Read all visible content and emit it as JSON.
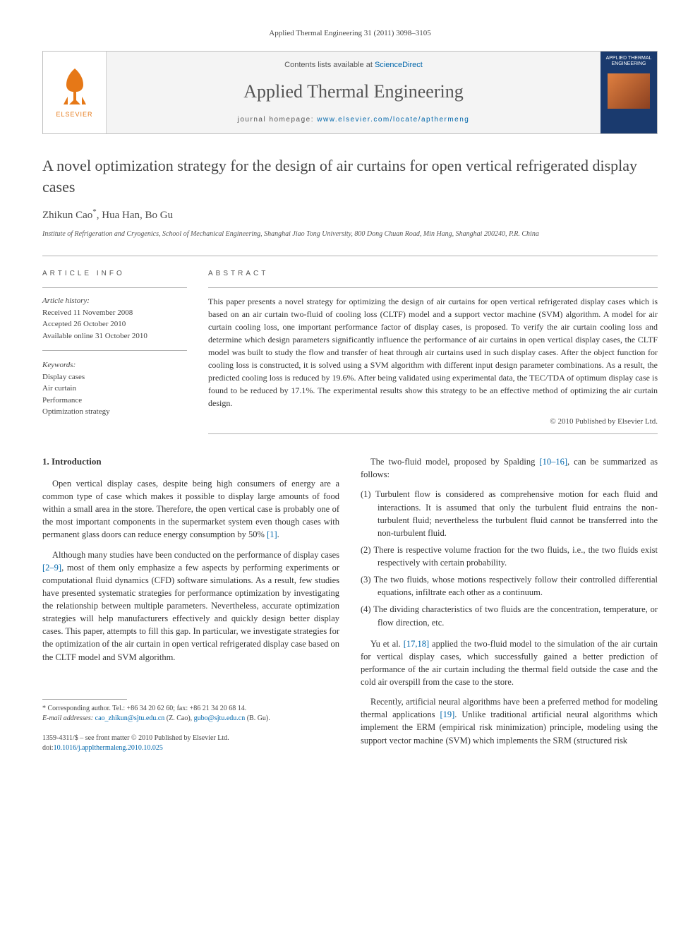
{
  "citation": "Applied Thermal Engineering 31 (2011) 3098–3105",
  "publisher": {
    "name": "ELSEVIER"
  },
  "masthead": {
    "contents_prefix": "Contents lists available at ",
    "contents_link": "ScienceDirect",
    "journal_name": "Applied Thermal Engineering",
    "homepage_prefix": "journal homepage: ",
    "homepage_url": "www.elsevier.com/locate/apthermeng",
    "cover_label": "APPLIED THERMAL ENGINEERING"
  },
  "article": {
    "title": "A novel optimization strategy for the design of air curtains for open vertical refrigerated display cases",
    "authors_html": "Zhikun Cao<span class='corr'>*</span>, Hua Han, Bo Gu",
    "affiliation": "Institute of Refrigeration and Cryogenics, School of Mechanical Engineering, Shanghai Jiao Tong University, 800 Dong Chuan Road, Min Hang, Shanghai 200240, P.R. China"
  },
  "info": {
    "label": "ARTICLE INFO",
    "history_label": "Article history:",
    "received": "Received 11 November 2008",
    "accepted": "Accepted 26 October 2010",
    "online": "Available online 31 October 2010",
    "keywords_label": "Keywords:",
    "keywords": [
      "Display cases",
      "Air curtain",
      "Performance",
      "Optimization strategy"
    ]
  },
  "abstract": {
    "label": "ABSTRACT",
    "text": "This paper presents a novel strategy for optimizing the design of air curtains for open vertical refrigerated display cases which is based on an air curtain two-fluid of cooling loss (CLTF) model and a support vector machine (SVM) algorithm. A model for air curtain cooling loss, one important performance factor of display cases, is proposed. To verify the air curtain cooling loss and determine which design parameters significantly influence the performance of air curtains in open vertical display cases, the CLTF model was built to study the flow and transfer of heat through air curtains used in such display cases. After the object function for cooling loss is constructed, it is solved using a SVM algorithm with different input design parameter combinations. As a result, the predicted cooling loss is reduced by 19.6%. After being validated using experimental data, the TEC/TDA of optimum display case is found to be reduced by 17.1%. The experimental results show this strategy to be an effective method of optimizing the air curtain design.",
    "copyright": "© 2010 Published by Elsevier Ltd."
  },
  "body": {
    "intro_heading": "1. Introduction",
    "p1": "Open vertical display cases, despite being high consumers of energy are a common type of case which makes it possible to display large amounts of food within a small area in the store. Therefore, the open vertical case is probably one of the most important components in the supermarket system even though cases with permanent glass doors can reduce energy consumption by 50% ",
    "p1_ref": "[1]",
    "p1_tail": ".",
    "p2a": "Although many studies have been conducted on the performance of display cases ",
    "p2_ref": "[2–9]",
    "p2b": ", most of them only emphasize a few aspects by performing experiments or computational fluid dynamics (CFD) software simulations. As a result, few studies have presented systematic strategies for performance optimization by investigating the relationship between multiple parameters. Nevertheless, accurate optimization strategies will help manufacturers effectively and quickly design better display cases. This paper, attempts to fill this gap. In particular, we investigate strategies for the optimization of the air curtain in open vertical refrigerated display case based on the CLTF model and SVM algorithm.",
    "p3a": "The two-fluid model, proposed by Spalding ",
    "p3_ref": "[10–16]",
    "p3b": ", can be summarized as follows:",
    "list": [
      "(1) Turbulent flow is considered as comprehensive motion for each fluid and interactions. It is assumed that only the turbulent fluid entrains the non-turbulent fluid; nevertheless the turbulent fluid cannot be transferred into the non-turbulent fluid.",
      "(2) There is respective volume fraction for the two fluids, i.e., the two fluids exist respectively with certain probability.",
      "(3) The two fluids, whose motions respectively follow their controlled differential equations, infiltrate each other as a continuum.",
      "(4) The dividing characteristics of two fluids are the concentration, temperature, or flow direction, etc."
    ],
    "p4a": "Yu et al. ",
    "p4_ref": "[17,18]",
    "p4b": " applied the two-fluid model to the simulation of the air curtain for vertical display cases, which successfully gained a better prediction of performance of the air curtain including the thermal field outside the case and the cold air overspill from the case to the store.",
    "p5a": "Recently, artificial neural algorithms have been a preferred method for modeling thermal applications ",
    "p5_ref": "[19]",
    "p5b": ". Unlike traditional artificial neural algorithms which implement the ERM (empirical risk minimization) principle, modeling using the support vector machine (SVM) which implements the SRM (structured risk"
  },
  "footnote": {
    "corr": "* Corresponding author. Tel.: +86 34 20 62 60; fax: +86 21 34 20 68 14.",
    "emails_label": "E-mail addresses: ",
    "email1": "cao_zhikun@sjtu.edu.cn",
    "email1_who": " (Z. Cao), ",
    "email2": "gubo@sjtu.edu.cn",
    "email2_who": " (B. Gu)."
  },
  "footer": {
    "line1": "1359-4311/$ – see front matter © 2010 Published by Elsevier Ltd.",
    "doi_prefix": "doi:",
    "doi": "10.1016/j.applthermaleng.2010.10.025"
  },
  "colors": {
    "link": "#0066aa",
    "publisher": "#e67817",
    "border": "#bfbfbf",
    "cover_bg": "#1a3a6e"
  }
}
